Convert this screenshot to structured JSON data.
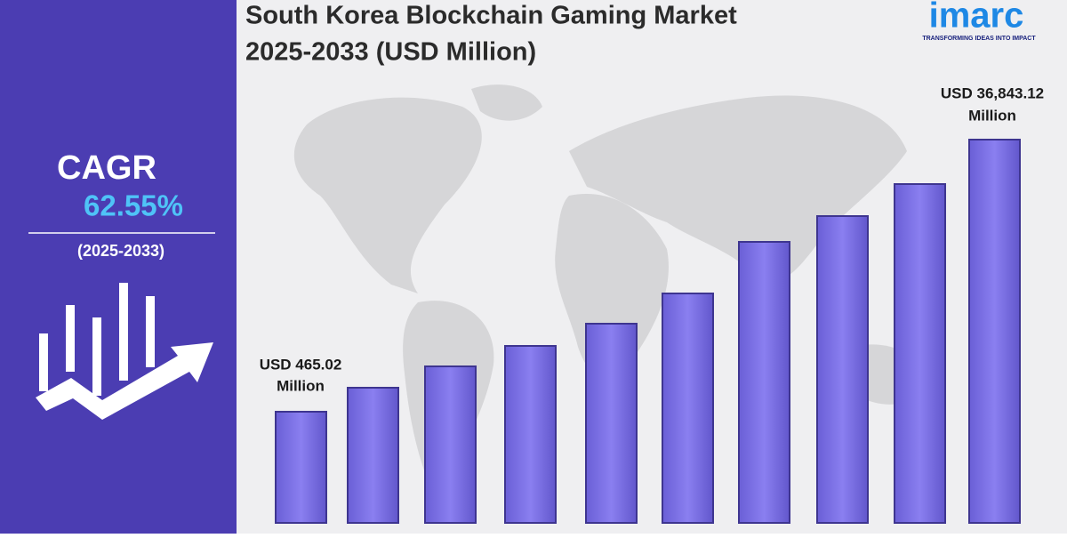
{
  "header": {
    "title_line1": "South Korea Blockchain Gaming Market",
    "title_line2": "2025-2033 (USD Million)"
  },
  "logo": {
    "name": "imarc",
    "tagline": "TRANSFORMING IDEAS INTO IMPACT"
  },
  "cagr": {
    "label": "CAGR",
    "value": "62.55%",
    "period": "(2025-2033)"
  },
  "callouts": {
    "start": [
      "USD 465.02",
      "Million"
    ],
    "end": [
      "USD 36,843.12",
      "Million"
    ]
  }
}
